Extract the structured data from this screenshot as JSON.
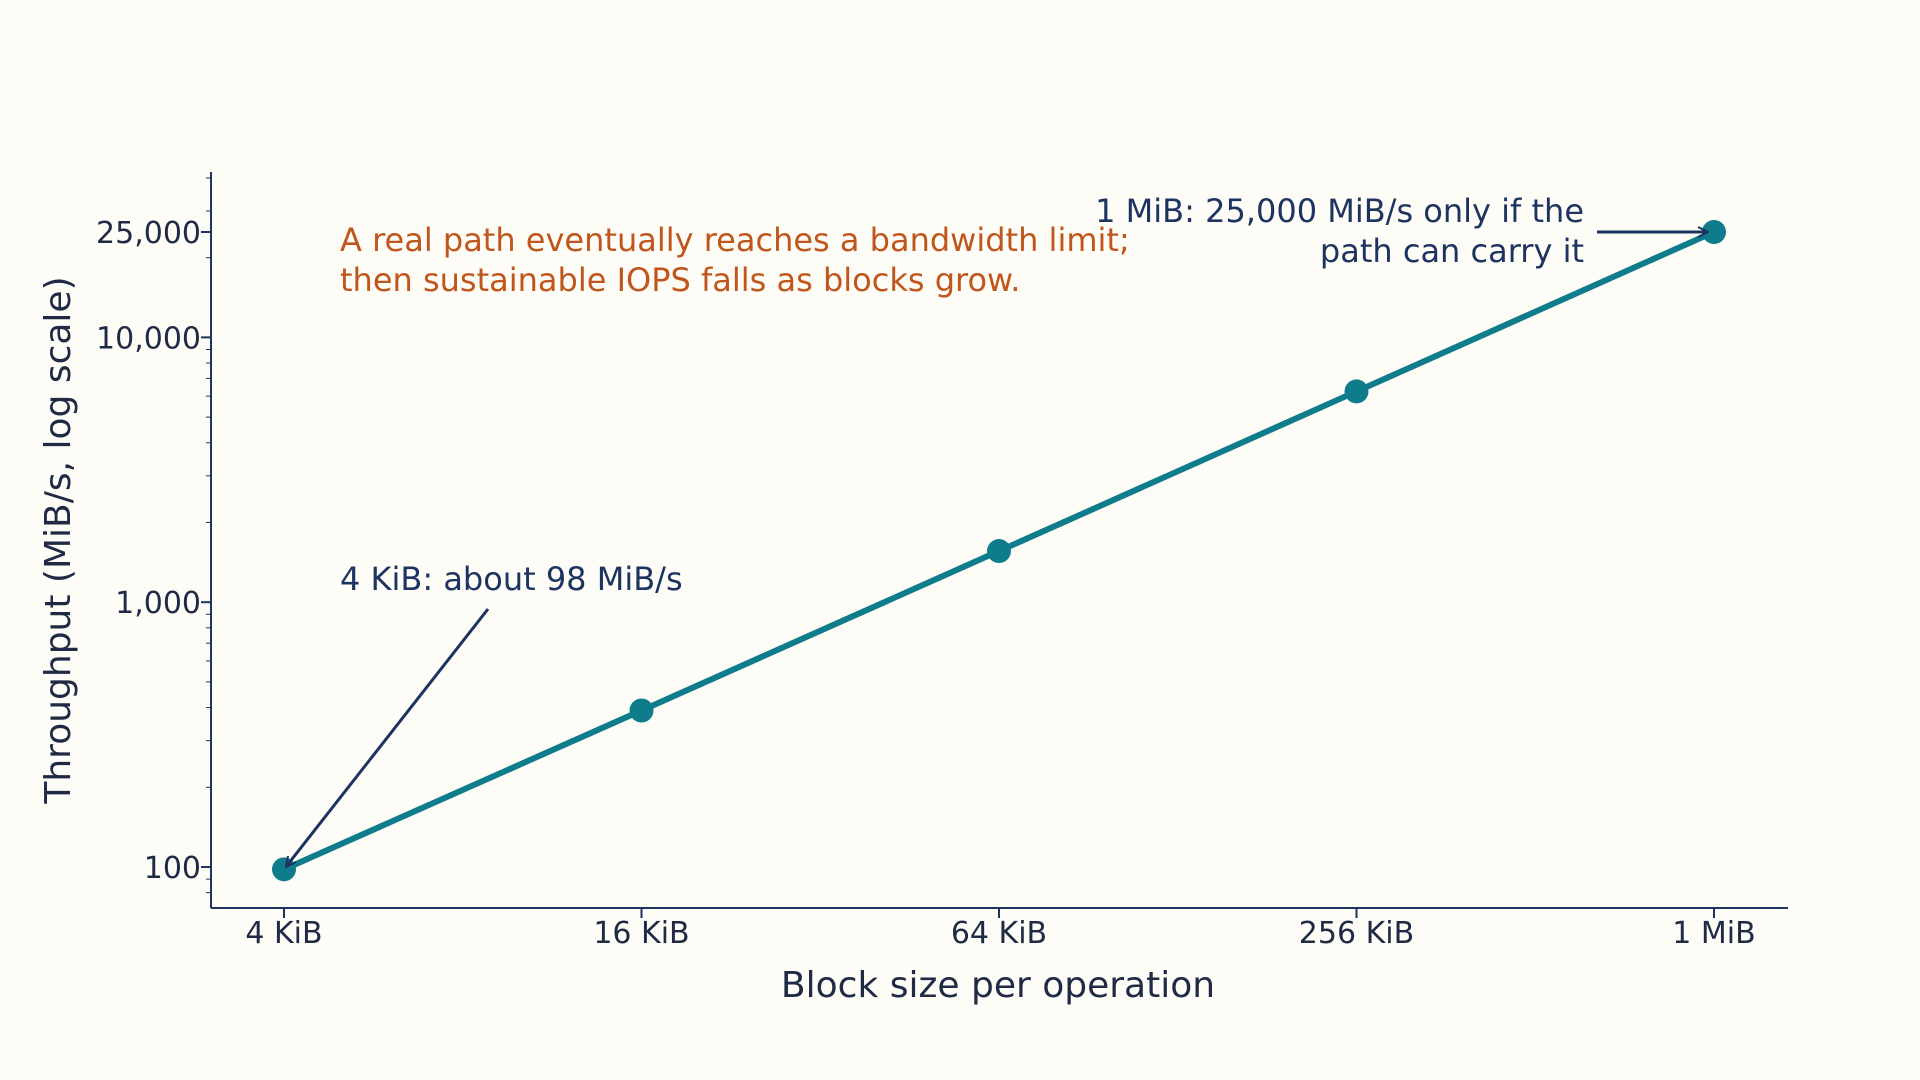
{
  "chart_data": {
    "type": "line",
    "title": "",
    "xlabel": "Block size per operation",
    "ylabel": "Throughput (MiB/s, log scale)",
    "y_scale": "log",
    "ylim": [
      70,
      45000
    ],
    "categories": [
      "4 KiB",
      "16 KiB",
      "64 KiB",
      "256 KiB",
      "1 MiB"
    ],
    "series": [
      {
        "values": [
          98,
          390,
          1560,
          6250,
          25000
        ],
        "color": "#0f7c8c"
      }
    ],
    "y_ticks": [
      {
        "value": 100,
        "label": "100"
      },
      {
        "value": 1000,
        "label": "1,000"
      },
      {
        "value": 10000,
        "label": "10,000"
      },
      {
        "value": 25000,
        "label": "25,000"
      }
    ],
    "grid": false,
    "annotations": [
      {
        "name": "annotation-4kib",
        "lines": [
          "4 KiB: about 98 MiB/s"
        ],
        "target_category": 0,
        "target_value": 98,
        "anchor": "start",
        "color": "#1d3461"
      },
      {
        "name": "annotation-1mib",
        "lines": [
          "1 MiB: 25,000 MiB/s only if the",
          "path can carry it"
        ],
        "target_category": 4,
        "target_value": 25000,
        "anchor": "end",
        "color": "#1d3461"
      }
    ],
    "highlight_note": {
      "lines": [
        "A real path eventually reaches a bandwidth limit;",
        "then sustainable IOPS falls as blocks grow."
      ],
      "color": "#c0561b"
    },
    "colors": {
      "axis": "#1d3461",
      "line": "#0f7c8c",
      "annotation": "#1d3461",
      "highlight": "#c0561b"
    }
  }
}
